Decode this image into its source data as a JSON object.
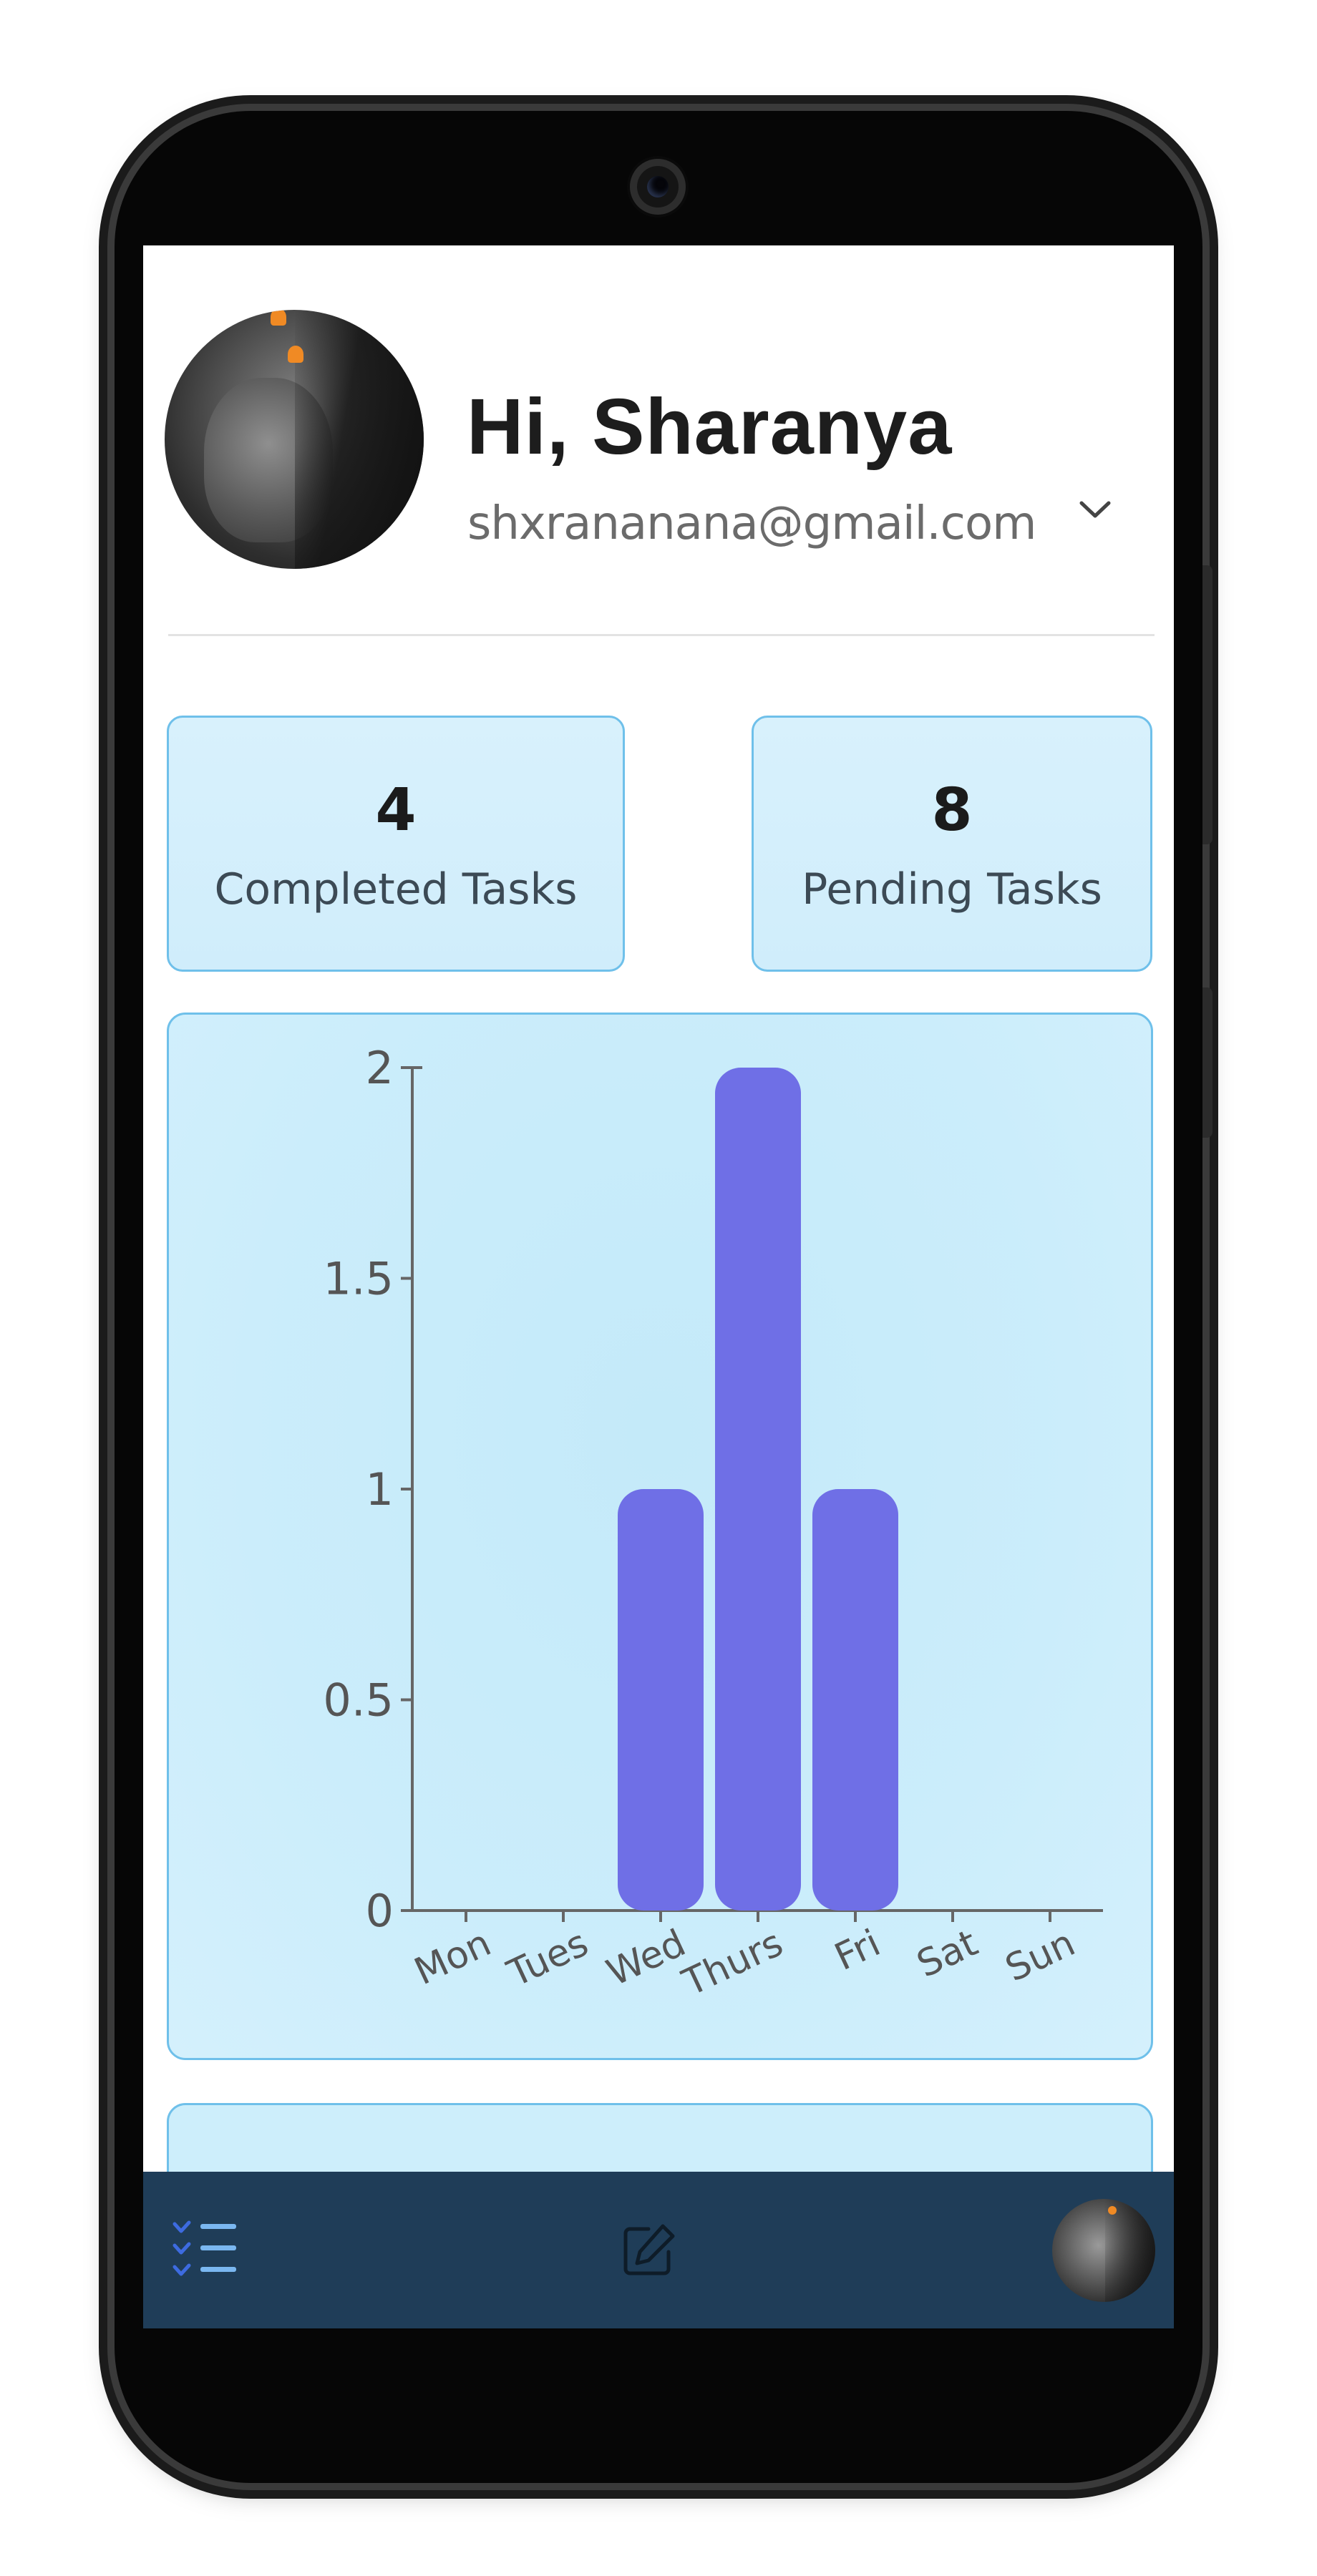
{
  "profile": {
    "greeting": "Hi, Sharanya",
    "email": "shxrananana@gmail.com",
    "avatar_icon": "profile-photo"
  },
  "stats": [
    {
      "value": "4",
      "label": "Completed Tasks"
    },
    {
      "value": "8",
      "label": "Pending Tasks"
    }
  ],
  "chart_data": {
    "type": "bar",
    "categories": [
      "Mon",
      "Tues",
      "Wed",
      "Thurs",
      "Fri",
      "Sat",
      "Sun"
    ],
    "values": [
      0,
      0,
      1,
      2,
      1,
      0,
      0
    ],
    "yticks": [
      "0",
      "0.5",
      "1",
      "1.5",
      "2"
    ],
    "ylim": [
      0,
      2
    ],
    "bar_color": "#6f6fe6",
    "axis_color": "#666666",
    "legend": false,
    "grid": false
  },
  "nav": {
    "items": [
      "tasks-list-icon",
      "edit-icon",
      "profile-avatar"
    ],
    "background": "#1f3d58",
    "active_icon_color": "#3d6be0"
  },
  "theme": {
    "card_bg": "#d3eefb",
    "card_border": "#6fc0ea"
  }
}
